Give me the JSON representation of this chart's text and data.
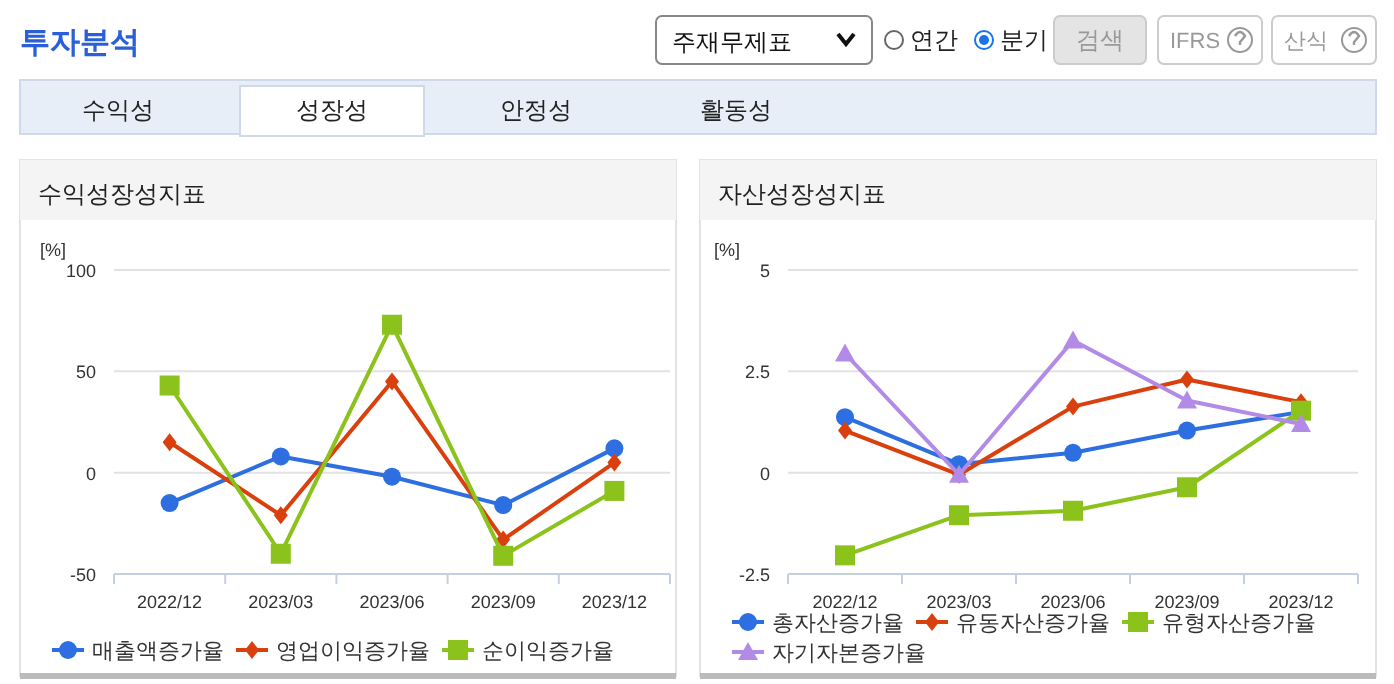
{
  "chart_data": [
    {
      "type": "other",
      "annotations": [
        "투자분석",
        "주재무제표",
        "연간",
        "분기",
        "검색",
        "IFRS",
        "산식",
        "수익성",
        "성장성",
        "안정성",
        "활동성"
      ]
    },
    {
      "type": "line",
      "title": "수익성장성지표",
      "ylabel": "[%]",
      "categories": [
        "2022/12",
        "2023/03",
        "2023/06",
        "2023/09",
        "2023/12"
      ],
      "ylim": [
        -50,
        100
      ],
      "yticks": [
        -50,
        0,
        50,
        100
      ],
      "grid": "y",
      "legend": "bottom",
      "series": [
        {
          "name": "매출액증가율",
          "color": "#2d6fe0",
          "marker": "circle",
          "values": [
            -15,
            8,
            -2,
            -16,
            12
          ]
        },
        {
          "name": "영업이익증가율",
          "color": "#d9400d",
          "marker": "diamond",
          "values": [
            15,
            -21,
            45,
            -33,
            5
          ]
        },
        {
          "name": "순이익증가율",
          "color": "#8cc21c",
          "marker": "square",
          "values": [
            43,
            -40,
            73,
            -41,
            -9
          ]
        }
      ]
    },
    {
      "type": "line",
      "title": "자산성장성지표",
      "ylabel": "[%]",
      "categories": [
        "2022/12",
        "2023/03",
        "2023/06",
        "2023/09",
        "2023/12"
      ],
      "ylim": [
        -2.5,
        5
      ],
      "yticks": [
        -2.5,
        0,
        2.5,
        5
      ],
      "grid": "y",
      "legend": "bottom",
      "series": [
        {
          "name": "총자산증가율",
          "color": "#2d6fe0",
          "marker": "circle",
          "values": [
            1.37,
            0.21,
            0.49,
            1.04,
            1.5
          ]
        },
        {
          "name": "유동자산증가율",
          "color": "#d9400d",
          "marker": "diamond",
          "values": [
            1.04,
            -0.05,
            1.63,
            2.3,
            1.74
          ]
        },
        {
          "name": "유형자산증가율",
          "color": "#8cc21c",
          "marker": "square",
          "values": [
            -2.04,
            -1.05,
            -0.94,
            -0.36,
            1.53
          ]
        },
        {
          "name": "자기자본증가율",
          "color": "#b28be6",
          "marker": "triangle",
          "values": [
            2.94,
            -0.05,
            3.26,
            1.78,
            1.2
          ]
        }
      ]
    }
  ]
}
